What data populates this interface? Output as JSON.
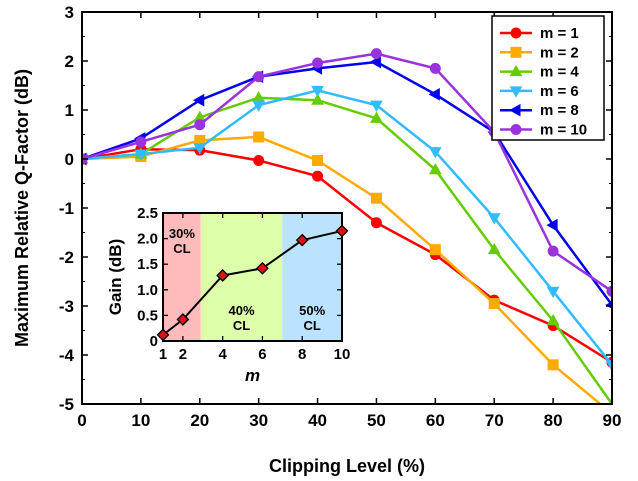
{
  "chart_data": [
    {
      "type": "line",
      "xlabel": "Clipping Level (%)",
      "ylabel": "Maximum Relative Q-Factor (dB)",
      "xlim": [
        0,
        90
      ],
      "ylim": [
        -5,
        3
      ],
      "xticks": [
        "0",
        "10",
        "20",
        "30",
        "40",
        "50",
        "60",
        "70",
        "80",
        "90"
      ],
      "yticks": [
        "-5",
        "-4",
        "-3",
        "-2",
        "-1",
        "0",
        "1",
        "2",
        "3"
      ],
      "legend_position": "top-right",
      "x": [
        0,
        10,
        20,
        30,
        40,
        50,
        60,
        70,
        80,
        90
      ],
      "series": [
        {
          "name": "m = 1",
          "color": "#ff0000",
          "marker": "circle",
          "values": [
            0,
            0.2,
            0.18,
            -0.03,
            -0.35,
            -1.3,
            -1.95,
            -2.88,
            -3.4,
            -4.15
          ]
        },
        {
          "name": "m = 2",
          "color": "#ffaa00",
          "marker": "square",
          "values": [
            0,
            0.05,
            0.38,
            0.45,
            -0.03,
            -0.8,
            -1.85,
            -2.95,
            -4.2,
            -5.2
          ]
        },
        {
          "name": "m = 4",
          "color": "#66cc00",
          "marker": "triangle-up",
          "values": [
            0,
            0.1,
            0.85,
            1.25,
            1.2,
            0.83,
            -0.22,
            -1.85,
            -3.3,
            -5.0
          ]
        },
        {
          "name": "m = 6",
          "color": "#33bbff",
          "marker": "triangle-down",
          "values": [
            0,
            0.1,
            0.23,
            1.1,
            1.4,
            1.1,
            0.15,
            -1.2,
            -2.7,
            -4.2
          ]
        },
        {
          "name": "m = 8",
          "color": "#0000ee",
          "marker": "triangle-left",
          "values": [
            0,
            0.42,
            1.2,
            1.68,
            1.85,
            1.98,
            1.32,
            0.55,
            -1.35,
            -2.98
          ]
        },
        {
          "name": "m = 10",
          "color": "#9933dd",
          "marker": "circle",
          "values": [
            0,
            0.35,
            0.7,
            1.68,
            1.96,
            2.15,
            1.85,
            0.55,
            -1.88,
            -2.7
          ]
        }
      ]
    },
    {
      "type": "line",
      "xlabel": "m",
      "ylabel": "Gain (dB)",
      "xlim": [
        1,
        10
      ],
      "ylim": [
        0,
        2.5
      ],
      "xticks": [
        "1",
        "2",
        "4",
        "6",
        "8",
        "10"
      ],
      "yticks": [
        "0",
        "0.5",
        "1.0",
        "1.5",
        "2.0",
        "2.5"
      ],
      "x": [
        1,
        2,
        4,
        6,
        8,
        10
      ],
      "series": [
        {
          "name": "",
          "color": "#000000",
          "marker_fill": "#dd1111",
          "marker": "diamond",
          "values": [
            0.12,
            0.42,
            1.28,
            1.42,
            1.97,
            2.15
          ]
        }
      ],
      "regions": [
        {
          "label": "30%\nCL",
          "x_from": 1,
          "x_to": 2.9,
          "color": "#ffbbbb"
        },
        {
          "label": "40%\nCL",
          "x_from": 2.9,
          "x_to": 7.0,
          "color": "#ddffaa"
        },
        {
          "label": "50%\nCL",
          "x_from": 7.0,
          "x_to": 10,
          "color": "#bbe3ff"
        }
      ]
    }
  ]
}
